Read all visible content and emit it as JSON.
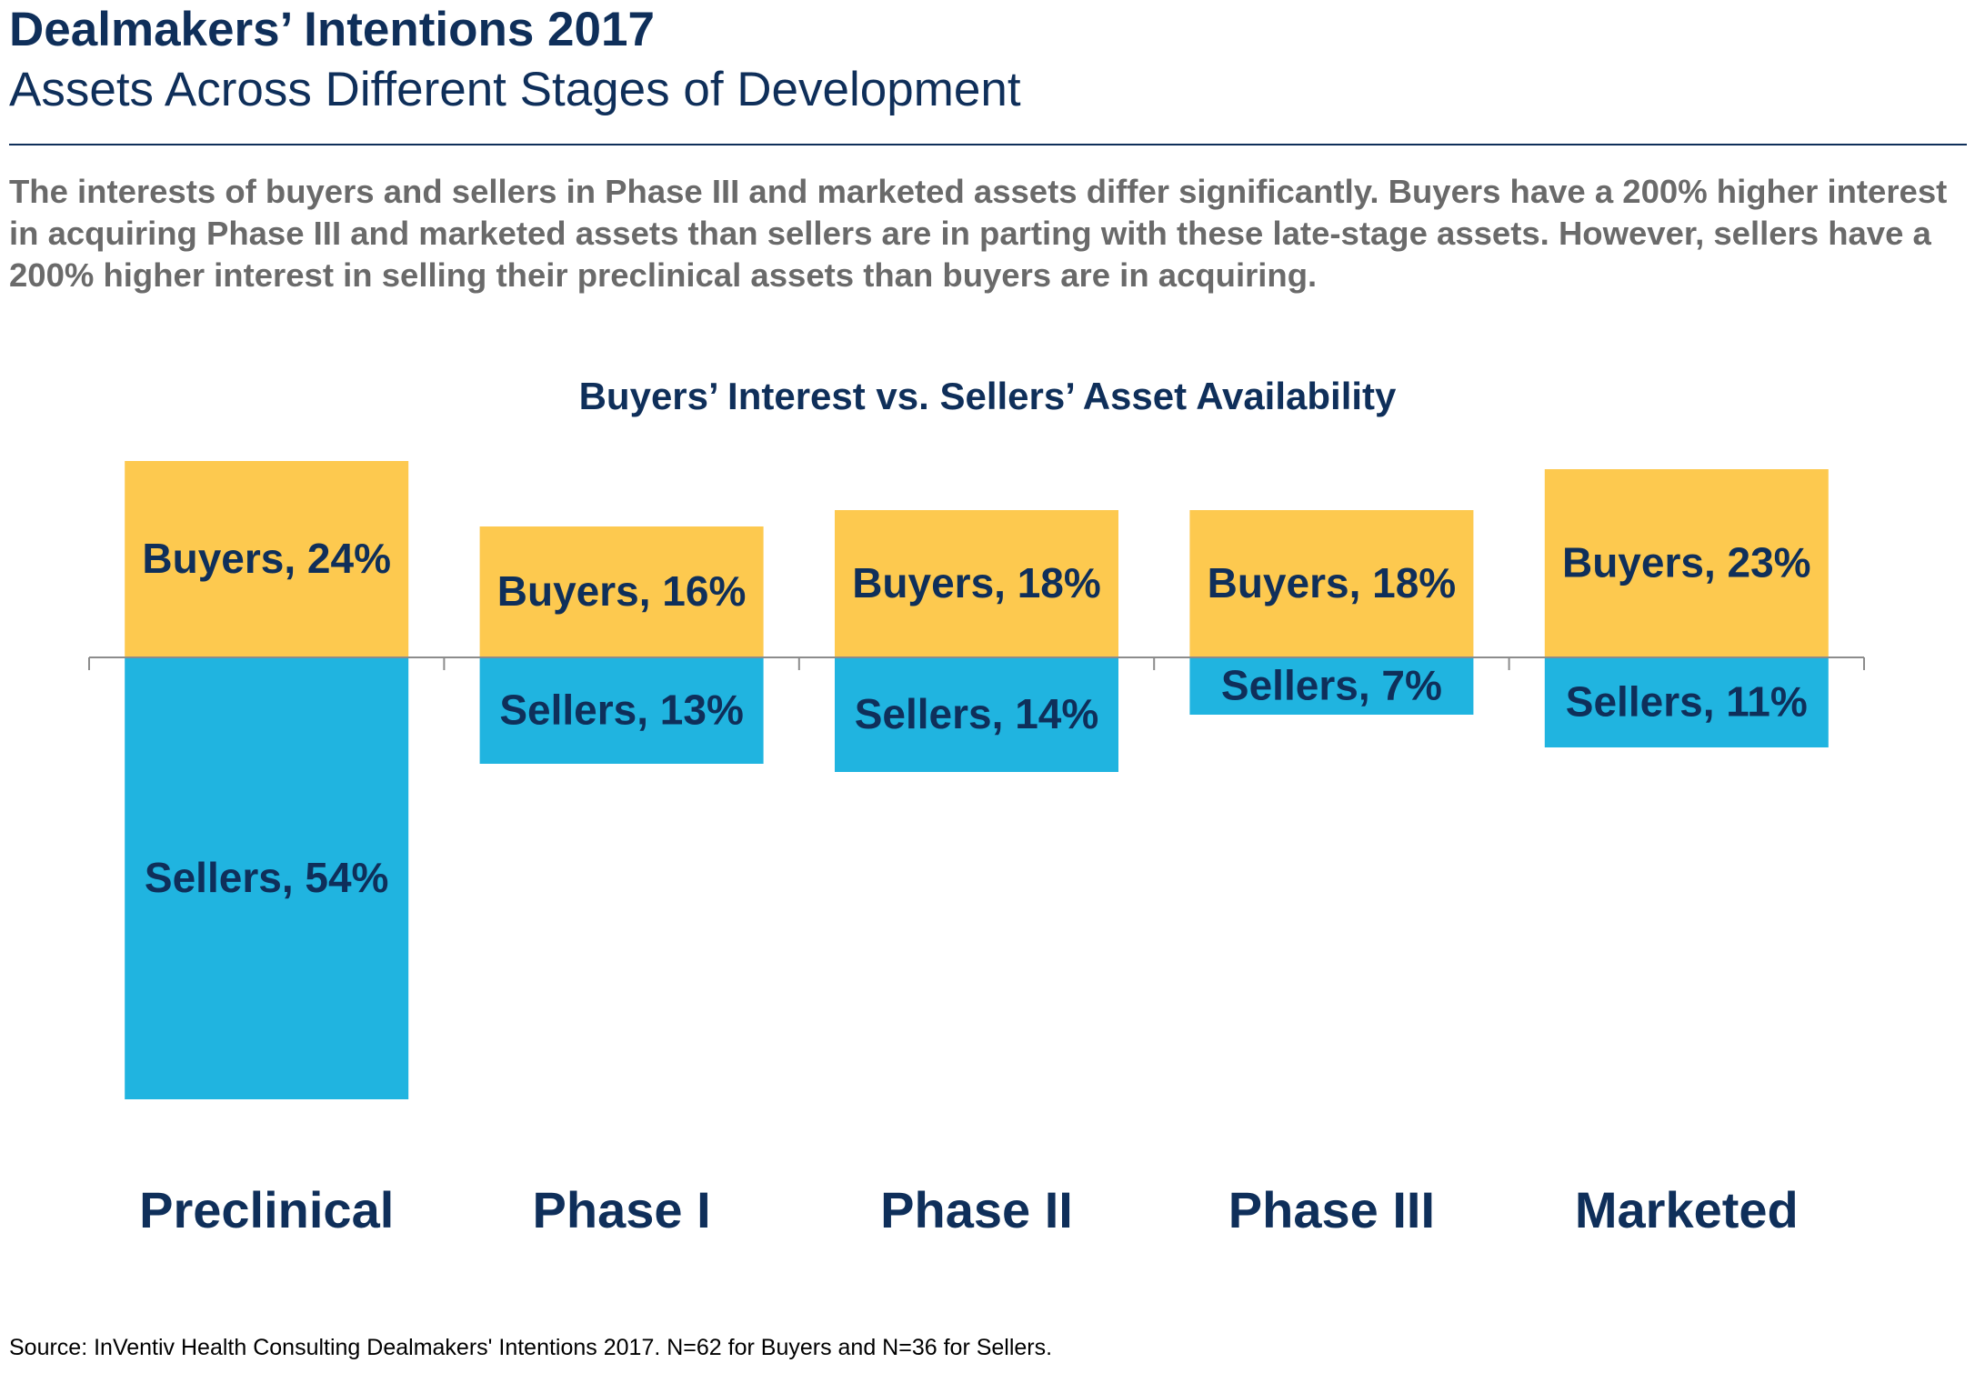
{
  "header": {
    "title": "Dealmakers’ Intentions 2017",
    "subtitle": "Assets Across Different Stages of Development"
  },
  "intro_text": "The interests of buyers and sellers in Phase III and marketed assets differ significantly. Buyers have a 200% higher interest in acquiring Phase III and marketed assets than sellers are in parting with these late-stage assets. However, sellers have a 200% higher interest in selling their preclinical assets than buyers are in acquiring.",
  "source": "Source: InVentiv Health Consulting Dealmakers' Intentions 2017. N=62 for Buyers and N=36 for Sellers.",
  "colors": {
    "buyers": "#fdc94f",
    "sellers": "#20b4e0",
    "text_dark": "#0f2f5a",
    "axis": "#8c8c8c"
  },
  "chart_data": {
    "type": "bar",
    "title": "Buyers’ Interest vs. Sellers’ Asset Availability",
    "categories": [
      "Preclinical",
      "Phase I",
      "Phase II",
      "Phase III",
      "Marketed"
    ],
    "series": [
      {
        "name": "Buyers",
        "values": [
          24,
          16,
          18,
          18,
          23
        ],
        "direction": "up"
      },
      {
        "name": "Sellers",
        "values": [
          54,
          13,
          14,
          7,
          11
        ],
        "direction": "down"
      }
    ],
    "value_labels": {
      "Buyers": [
        "Buyers, 24%",
        "Buyers, 16%",
        "Buyers, 18%",
        "Buyers, 18%",
        "Buyers, 23%"
      ],
      "Sellers": [
        "Sellers, 54%",
        "Sellers, 13%",
        "Sellers, 14%",
        "Sellers, 7%",
        "Sellers, 11%"
      ]
    },
    "unit": "%",
    "legend": "none",
    "grid": false
  }
}
